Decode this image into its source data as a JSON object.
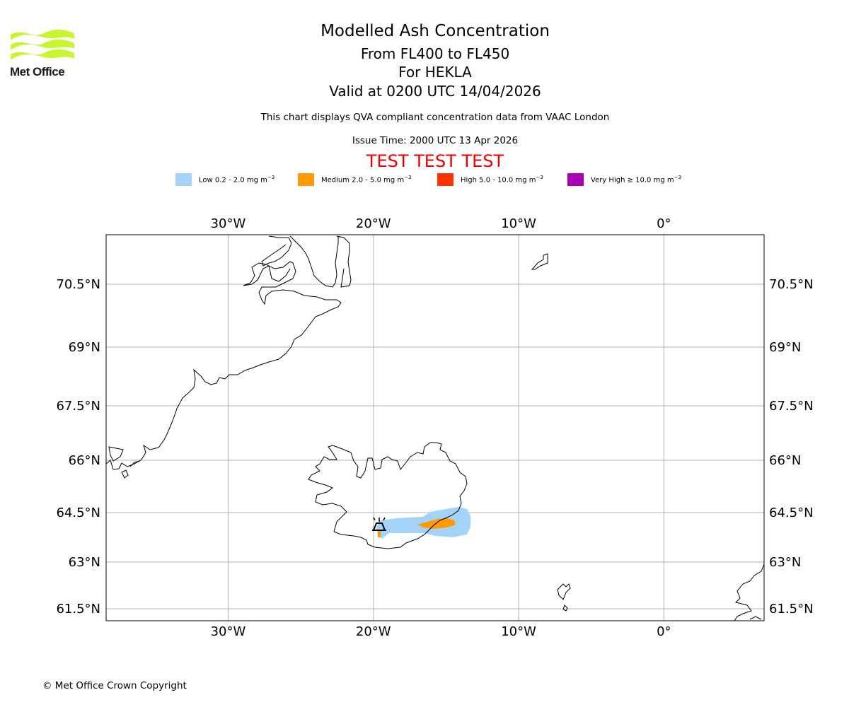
{
  "header": {
    "logo_text": "Met Office",
    "title": "Modelled Ash Concentration",
    "subtitle_levels": "From FL400 to FL450",
    "subtitle_volcano": "For HEKLA",
    "subtitle_valid": "Valid at 0200 UTC 14/04/2026",
    "note": "This chart displays QVA compliant concentration data from VAAC London",
    "issue_time": "Issue Time: 2000 UTC 13 Apr 2026",
    "test_banner": "TEST TEST TEST"
  },
  "legend": [
    {
      "label": "Low 0.2 - 2.0 mg m",
      "unit_sup": "−3",
      "color": "#a3d3f8"
    },
    {
      "label": "Medium 2.0 - 5.0 mg m",
      "unit_sup": "−3",
      "color": "#ff9a05"
    },
    {
      "label": "High 5.0 - 10.0 mg m",
      "unit_sup": "−3",
      "color": "#ff3300"
    },
    {
      "label": "Very High  ≥  10.0 mg m",
      "unit_sup": "−3",
      "color": "#aa00b5"
    }
  ],
  "map": {
    "lon_labels": [
      "30°W",
      "20°W",
      "10°W",
      "0°"
    ],
    "lon_values": [
      -30,
      -20,
      -10,
      0
    ],
    "lat_labels": [
      "70.5°N",
      "69°N",
      "67.5°N",
      "66°N",
      "64.5°N",
      "63°N",
      "61.5°N"
    ],
    "lat_values": [
      70.5,
      69,
      67.5,
      66,
      64.5,
      63,
      61.5
    ],
    "extent": {
      "lon_min": -38.4,
      "lon_max": 6.9,
      "lat_min": 61.2,
      "lat_max": 71.5
    },
    "volcano": {
      "name": "HEKLA",
      "lon": -19.6,
      "lat": 63.98
    },
    "grid_color": "#b0b0b0"
  },
  "footer": {
    "copyright": "© Met Office Crown Copyright"
  }
}
